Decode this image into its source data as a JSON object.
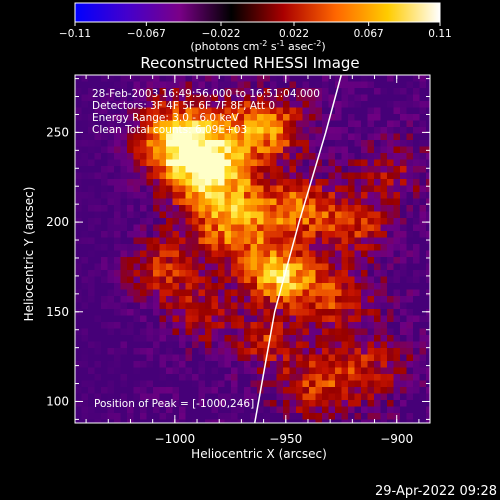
{
  "colorbar": {
    "ticks": [
      "-0.11",
      "-0.067",
      "-0.022",
      "0.022",
      "0.067",
      "0.11"
    ],
    "units_text": "(photons cm",
    "units_exp1": "-2",
    "units_mid": " s",
    "units_exp2": "-1",
    "units_end": " asec",
    "units_exp3": "-2",
    "units_close": ")",
    "range": [
      -0.11,
      0.11
    ],
    "colors": [
      "#0000ff",
      "#4400cc",
      "#7a0088",
      "#000000",
      "#aa0000",
      "#ff6600",
      "#ffcc00",
      "#ffffff"
    ]
  },
  "chart_data": {
    "type": "heatmap",
    "title": "Reconstructed RHESSI Image",
    "xlabel": "Heliocentric X (arcsec)",
    "ylabel": "Heliocentric Y (arcsec)",
    "xlim": [
      -1045,
      -885
    ],
    "ylim": [
      88,
      282
    ],
    "xticks": [
      -1000,
      -950,
      -900
    ],
    "xtick_labels": [
      "−1000",
      "−950",
      "−900"
    ],
    "yticks": [
      100,
      150,
      200,
      250
    ],
    "ytick_labels": [
      "100",
      "150",
      "200",
      "250"
    ],
    "limb_curve": [
      [
        -964,
        88
      ],
      [
        -955,
        150
      ],
      [
        -944,
        200
      ],
      [
        -932,
        250
      ],
      [
        -925,
        282
      ]
    ],
    "peak": [
      -1000,
      246
    ],
    "annotations": {
      "line1": "28-Feb-2003 16:49:56.000 to 16:51:04.000",
      "line2": "Detectors: 3F 4F 5F 6F 7F 8F, Att 0",
      "line3": "Energy Range: 3.0 - 6.0 keV",
      "line4": "Clean     Total counts: 6.09E+03",
      "peak_label": "Position of Peak = [-1000,246]"
    }
  },
  "timestamp": "29-Apr-2022 09:28"
}
